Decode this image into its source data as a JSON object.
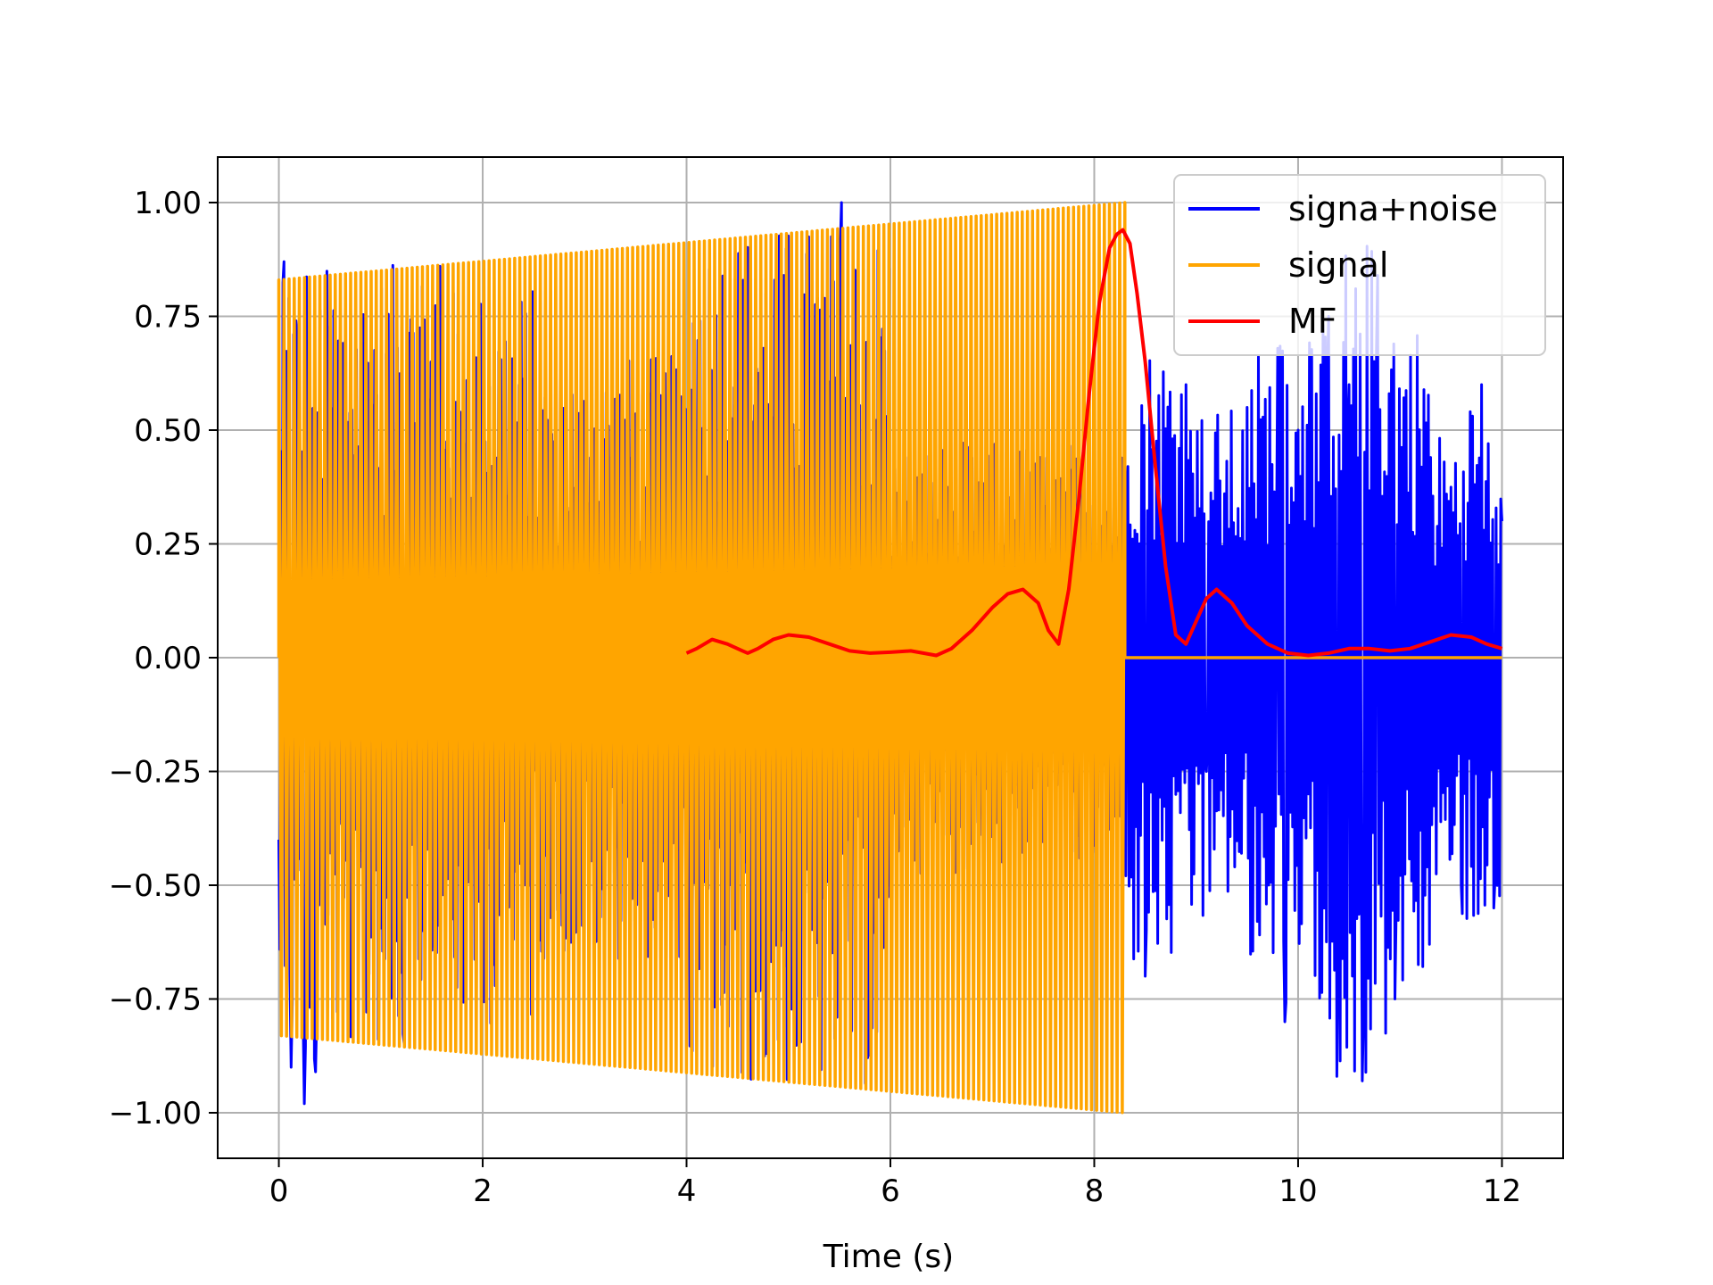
{
  "chart_data": {
    "type": "line",
    "title": "",
    "xlabel": "Time (s)",
    "ylabel": "",
    "xlim": [
      -0.6,
      12.6
    ],
    "ylim": [
      -1.1,
      1.1
    ],
    "grid": true,
    "legend": {
      "placement": "top-right"
    },
    "x_ticks": [
      0,
      2,
      4,
      6,
      8,
      10,
      12
    ],
    "x_tick_labels": [
      "0",
      "2",
      "4",
      "6",
      "8",
      "10",
      "12"
    ],
    "y_ticks": [
      1.0,
      0.75,
      0.5,
      0.25,
      0.0,
      -0.25,
      -0.5,
      -0.75,
      -1.0
    ],
    "y_tick_labels": [
      "1.00",
      "0.75",
      "0.50",
      "0.25",
      "0.00",
      "−0.25",
      "−0.50",
      "−0.75",
      "−1.00"
    ],
    "series": [
      {
        "name": "signa+noise",
        "color": "#0000ff",
        "description_points": {
          "x": [
            0.0,
            0.05,
            0.12,
            0.18,
            0.25,
            0.36,
            1.23,
            1.58,
            2.5,
            4.0,
            5.52,
            6.0,
            8.28,
            8.33,
            8.5,
            8.9,
            9.1,
            9.5,
            9.8,
            9.87,
            10.0,
            10.3,
            10.38,
            10.5,
            10.63,
            10.78,
            10.95,
            11.3,
            11.6,
            11.8,
            11.92,
            12.0
          ],
          "y": [
            -0.4,
            0.87,
            -0.9,
            0.7,
            -0.98,
            -0.91,
            -0.85,
            0.86,
            0.6,
            -0.7,
            1.0,
            -0.5,
            -0.5,
            0.42,
            -0.7,
            0.6,
            -0.25,
            0.55,
            0.68,
            -0.8,
            0.5,
            0.75,
            -0.92,
            0.6,
            -0.93,
            0.84,
            -0.75,
            0.44,
            -0.5,
            0.6,
            -0.55,
            0.3
          ]
        }
      },
      {
        "name": "signal",
        "color": "#ffa500",
        "envelope": {
          "x": [
            0.0,
            8.3
          ],
          "amplitude": [
            0.83,
            1.0
          ]
        },
        "x_end_of_signal": 8.3,
        "zero_after": true
      },
      {
        "name": "MF",
        "color": "#ff0000",
        "x": [
          4.0,
          4.1,
          4.25,
          4.4,
          4.55,
          4.6,
          4.7,
          4.85,
          5.0,
          5.2,
          5.4,
          5.6,
          5.8,
          6.0,
          6.2,
          6.45,
          6.6,
          6.8,
          7.0,
          7.15,
          7.3,
          7.45,
          7.55,
          7.65,
          7.75,
          7.85,
          7.95,
          8.05,
          8.15,
          8.22,
          8.28,
          8.35,
          8.42,
          8.5,
          8.6,
          8.7,
          8.8,
          8.9,
          9.0,
          9.1,
          9.2,
          9.35,
          9.5,
          9.7,
          9.9,
          10.1,
          10.3,
          10.5,
          10.7,
          10.9,
          11.1,
          11.3,
          11.5,
          11.7,
          11.85,
          12.0
        ],
        "y": [
          0.01,
          0.02,
          0.04,
          0.03,
          0.015,
          0.01,
          0.02,
          0.04,
          0.05,
          0.045,
          0.03,
          0.015,
          0.01,
          0.012,
          0.015,
          0.005,
          0.02,
          0.06,
          0.11,
          0.14,
          0.15,
          0.12,
          0.06,
          0.03,
          0.15,
          0.35,
          0.58,
          0.78,
          0.9,
          0.93,
          0.94,
          0.91,
          0.8,
          0.65,
          0.42,
          0.2,
          0.05,
          0.03,
          0.08,
          0.13,
          0.15,
          0.12,
          0.07,
          0.03,
          0.01,
          0.005,
          0.01,
          0.02,
          0.02,
          0.015,
          0.02,
          0.035,
          0.05,
          0.045,
          0.03,
          0.02
        ]
      }
    ],
    "legend_entries": [
      "signa+noise",
      "signal",
      "MF"
    ]
  }
}
